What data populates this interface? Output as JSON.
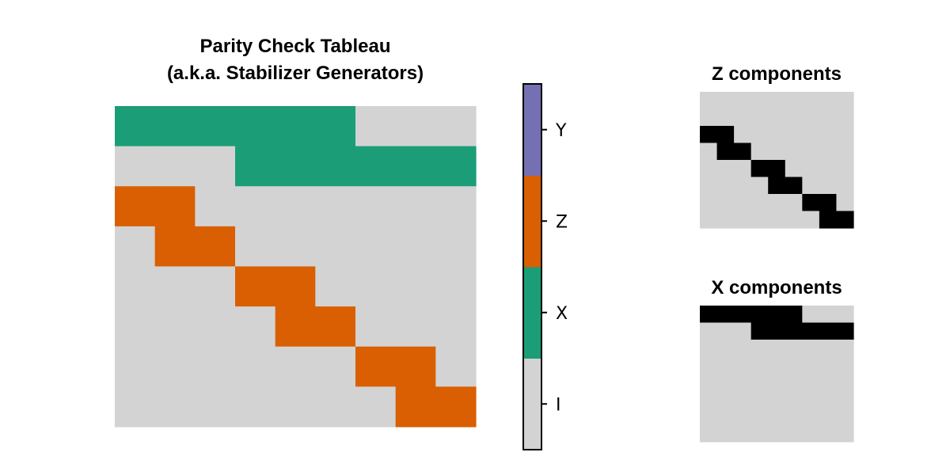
{
  "colors": {
    "I": "#d3d3d3",
    "X": "#1b9e77",
    "Z": "#d95f02",
    "Y": "#7570b3",
    "on": "#000000",
    "off": "#d3d3d3",
    "colorbar_border": "#000000"
  },
  "chart_data": [
    {
      "type": "heatmap",
      "title": "Parity Check Tableau\n(a.k.a. Stabilizer Generators)",
      "title_lines": [
        "Parity Check Tableau",
        "(a.k.a. Stabilizer Generators)"
      ],
      "rows": 8,
      "cols": 9,
      "symbols": [
        "I",
        "X",
        "Z",
        "Y"
      ],
      "value_map": {
        "I": 0,
        "X": 1,
        "Z": 2,
        "Y": 3
      },
      "matrix": [
        [
          1,
          1,
          1,
          1,
          1,
          1,
          0,
          0,
          0
        ],
        [
          0,
          0,
          0,
          1,
          1,
          1,
          1,
          1,
          1
        ],
        [
          2,
          2,
          0,
          0,
          0,
          0,
          0,
          0,
          0
        ],
        [
          0,
          2,
          2,
          0,
          0,
          0,
          0,
          0,
          0
        ],
        [
          0,
          0,
          0,
          2,
          2,
          0,
          0,
          0,
          0
        ],
        [
          0,
          0,
          0,
          0,
          2,
          2,
          0,
          0,
          0
        ],
        [
          0,
          0,
          0,
          0,
          0,
          0,
          2,
          2,
          0
        ],
        [
          0,
          0,
          0,
          0,
          0,
          0,
          0,
          2,
          2
        ]
      ],
      "colorbar": {
        "ticks": [
          "I",
          "X",
          "Z",
          "Y"
        ],
        "range": [
          0,
          3
        ]
      },
      "grid": false
    },
    {
      "type": "heatmap",
      "title": "Z components",
      "rows": 8,
      "cols": 9,
      "matrix": [
        [
          0,
          0,
          0,
          0,
          0,
          0,
          0,
          0,
          0
        ],
        [
          0,
          0,
          0,
          0,
          0,
          0,
          0,
          0,
          0
        ],
        [
          1,
          1,
          0,
          0,
          0,
          0,
          0,
          0,
          0
        ],
        [
          0,
          1,
          1,
          0,
          0,
          0,
          0,
          0,
          0
        ],
        [
          0,
          0,
          0,
          1,
          1,
          0,
          0,
          0,
          0
        ],
        [
          0,
          0,
          0,
          0,
          1,
          1,
          0,
          0,
          0
        ],
        [
          0,
          0,
          0,
          0,
          0,
          0,
          1,
          1,
          0
        ],
        [
          0,
          0,
          0,
          0,
          0,
          0,
          0,
          1,
          1
        ]
      ],
      "grid": false
    },
    {
      "type": "heatmap",
      "title": "X components",
      "rows": 8,
      "cols": 9,
      "matrix": [
        [
          1,
          1,
          1,
          1,
          1,
          1,
          0,
          0,
          0
        ],
        [
          0,
          0,
          0,
          1,
          1,
          1,
          1,
          1,
          1
        ],
        [
          0,
          0,
          0,
          0,
          0,
          0,
          0,
          0,
          0
        ],
        [
          0,
          0,
          0,
          0,
          0,
          0,
          0,
          0,
          0
        ],
        [
          0,
          0,
          0,
          0,
          0,
          0,
          0,
          0,
          0
        ],
        [
          0,
          0,
          0,
          0,
          0,
          0,
          0,
          0,
          0
        ],
        [
          0,
          0,
          0,
          0,
          0,
          0,
          0,
          0,
          0
        ],
        [
          0,
          0,
          0,
          0,
          0,
          0,
          0,
          0,
          0
        ]
      ],
      "grid": false
    }
  ]
}
